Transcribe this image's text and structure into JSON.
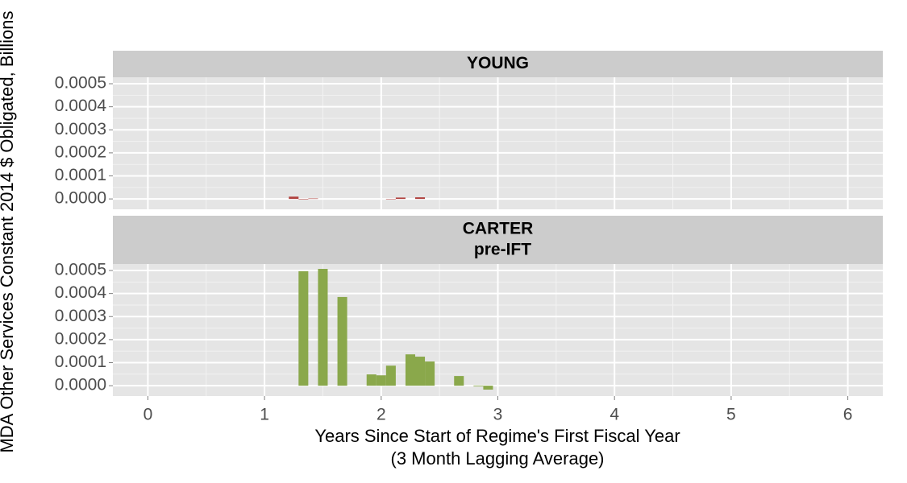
{
  "chart_data": [
    {
      "type": "bar",
      "title": [
        "YOUNG"
      ],
      "ylabel": "MDA Other Services Constant 2014 $ Obligated, Billions",
      "x": [
        1.25,
        1.3333,
        1.4167,
        2.0833,
        2.1667,
        2.3333
      ],
      "values": [
        1e-05,
        -2e-06,
        2e-06,
        -1e-06,
        6e-06,
        7e-06
      ],
      "color": "#b0413e",
      "bar_width": 0.0833,
      "xlim": [
        -0.3,
        6.3
      ],
      "xticks": [
        0,
        1,
        2,
        3,
        4,
        5,
        6
      ],
      "ylim": [
        -4.5e-05,
        0.000528
      ],
      "yticks": [
        {
          "value": 0,
          "label": "0.0000"
        },
        {
          "value": 0.0001,
          "label": "0.0001"
        },
        {
          "value": 0.0002,
          "label": "0.0002"
        },
        {
          "value": 0.0003,
          "label": "0.0003"
        },
        {
          "value": 0.0004,
          "label": "0.0004"
        },
        {
          "value": 0.0005,
          "label": "0.0005"
        }
      ],
      "grid": true
    },
    {
      "type": "bar",
      "title": [
        "CARTER",
        "pre-IFT"
      ],
      "xlabel": [
        "Years Since Start of Regime's First Fiscal Year",
        "(3 Month Lagging Average)"
      ],
      "x": [
        1.3333,
        1.5,
        1.6667,
        1.9167,
        2.0,
        2.0833,
        2.25,
        2.3333,
        2.4167,
        2.6667,
        2.8333,
        2.9167
      ],
      "values": [
        0.000497,
        0.000507,
        0.000385,
        4.9e-05,
        4.5e-05,
        8.7e-05,
        0.000136,
        0.000126,
        0.000105,
        4.2e-05,
        -3e-06,
        -1.7e-05
      ],
      "color": "#8aa84b",
      "bar_width": 0.0833,
      "xlim": [
        -0.3,
        6.3
      ],
      "xticks": [
        0,
        1,
        2,
        3,
        4,
        5,
        6
      ],
      "ylim": [
        -4.5e-05,
        0.000528
      ],
      "yticks": [
        {
          "value": 0,
          "label": "0.0000"
        },
        {
          "value": 0.0001,
          "label": "0.0001"
        },
        {
          "value": 0.0002,
          "label": "0.0002"
        },
        {
          "value": 0.0003,
          "label": "0.0003"
        },
        {
          "value": 0.0004,
          "label": "0.0004"
        },
        {
          "value": 0.0005,
          "label": "0.0005"
        }
      ],
      "grid": true
    }
  ]
}
